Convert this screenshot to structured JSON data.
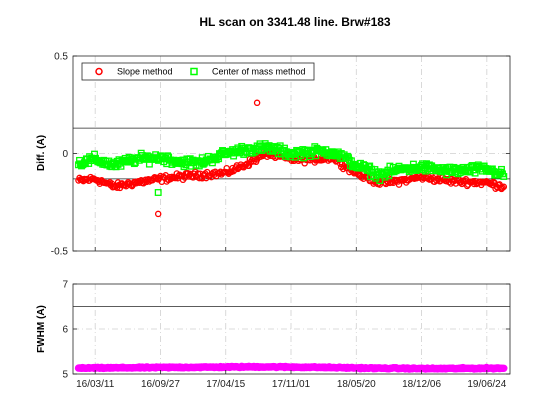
{
  "chart_data": [
    {
      "type": "scatter",
      "title": "HL scan on 3341.48 line. Brw#183",
      "ylabel": "Diff.  (A)",
      "ylim": [
        -0.5,
        0.5
      ],
      "yticks": [
        "-0.5",
        "0",
        "0.5"
      ],
      "reference_lines": [
        0.13,
        -0.13
      ],
      "grid": true,
      "legend": "top-left",
      "series": [
        {
          "name": "Slope method",
          "color": "#ff0000",
          "marker": "circle",
          "x": [
            "16/01/20",
            "16/03/11",
            "16/05/10",
            "16/07/10",
            "16/09/27",
            "16/11/20",
            "17/01/20",
            "17/04/15",
            "17/06/10",
            "17/08/20",
            "17/11/01",
            "18/01/10",
            "18/03/10",
            "18/05/20",
            "18/08/01",
            "18/10/01",
            "18/12/06",
            "19/03/01",
            "19/06/24",
            "19/08/15"
          ],
          "values": [
            -0.14,
            -0.13,
            -0.17,
            -0.15,
            -0.13,
            -0.12,
            -0.11,
            -0.1,
            -0.06,
            0.0,
            -0.03,
            -0.03,
            -0.02,
            -0.1,
            -0.15,
            -0.14,
            -0.12,
            -0.14,
            -0.15,
            -0.17
          ],
          "outliers": [
            {
              "x": "16/09/20",
              "value": -0.31
            },
            {
              "x": "17/07/20",
              "value": 0.26
            }
          ]
        },
        {
          "name": "Center of mass method",
          "color": "#00ff00",
          "marker": "square",
          "x": [
            "16/01/20",
            "16/03/11",
            "16/05/10",
            "16/07/10",
            "16/09/27",
            "16/11/20",
            "17/01/20",
            "17/04/15",
            "17/06/10",
            "17/08/20",
            "17/11/01",
            "18/01/10",
            "18/03/10",
            "18/05/20",
            "18/08/01",
            "18/10/01",
            "18/12/06",
            "19/03/01",
            "19/06/24",
            "19/08/15"
          ],
          "values": [
            -0.05,
            -0.03,
            -0.06,
            -0.03,
            -0.02,
            -0.04,
            -0.05,
            0.0,
            0.02,
            0.03,
            0.0,
            0.01,
            0.01,
            -0.06,
            -0.11,
            -0.08,
            -0.07,
            -0.09,
            -0.08,
            -0.11
          ],
          "outliers": [
            {
              "x": "16/09/20",
              "value": -0.2
            }
          ]
        }
      ]
    },
    {
      "type": "scatter",
      "ylabel": "FWHM  (A)",
      "ylim": [
        5,
        7
      ],
      "yticks": [
        "5",
        "6",
        "7"
      ],
      "reference_lines": [
        6.5
      ],
      "grid": true,
      "xticks": [
        "16/03/11",
        "16/09/27",
        "17/04/15",
        "17/11/01",
        "18/05/20",
        "18/12/06",
        "19/06/24"
      ],
      "series": [
        {
          "color": "#ff00ff",
          "marker": "circle",
          "x": [
            "16/01/20",
            "16/07/10",
            "17/01/20",
            "17/07/20",
            "18/01/10",
            "18/07/10",
            "19/01/10",
            "19/08/15"
          ],
          "values": [
            5.13,
            5.14,
            5.15,
            5.16,
            5.15,
            5.13,
            5.12,
            5.13
          ]
        }
      ]
    }
  ]
}
